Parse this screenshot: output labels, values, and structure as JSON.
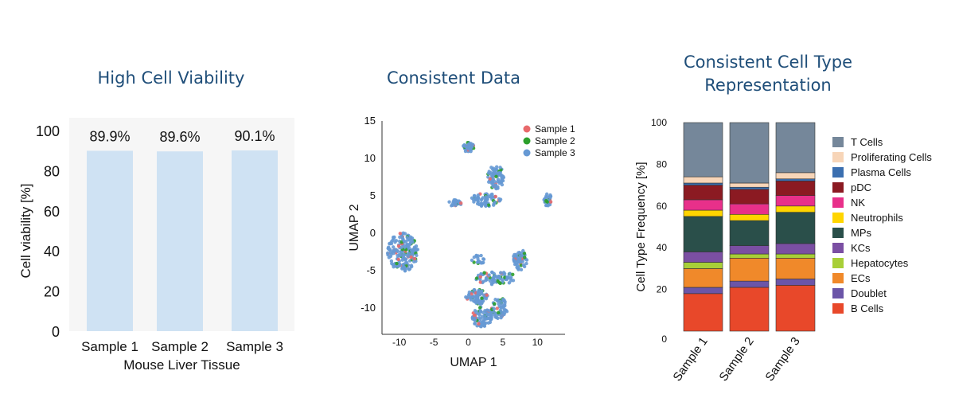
{
  "chart_data": [
    {
      "type": "bar",
      "title": "High Cell Viability",
      "xlabel": "Mouse Liver Tissue",
      "ylabel": "Cell viability [%]",
      "categories": [
        "Sample 1",
        "Sample 2",
        "Sample 3"
      ],
      "values": [
        89.9,
        89.6,
        90.1
      ],
      "value_labels": [
        "89.9%",
        "89.6%",
        "90.1%"
      ],
      "ylim": [
        0,
        100
      ],
      "yticks": [
        0,
        20,
        40,
        60,
        80,
        100
      ],
      "grid": false,
      "colors": {
        "bar": "#cfe2f3"
      }
    },
    {
      "type": "scatter",
      "title": "Consistent Data",
      "xlabel": "UMAP 1",
      "ylabel": "UMAP 2",
      "xlim": [
        -12.5,
        14
      ],
      "ylim": [
        -13.5,
        15
      ],
      "xticks": [
        -10,
        -5,
        0,
        5,
        10
      ],
      "yticks": [
        -10,
        -5,
        0,
        5,
        10,
        15
      ],
      "legend_position": "top-right",
      "grid": false,
      "series": [
        {
          "name": "Sample 1",
          "color": "#e8696b"
        },
        {
          "name": "Sample 2",
          "color": "#2ca02c"
        },
        {
          "name": "Sample 3",
          "color": "#6699d4"
        }
      ],
      "clusters": [
        {
          "cx": 0,
          "cy": 11.5,
          "rx": 0.8,
          "ry": 0.7,
          "n": 45
        },
        {
          "cx": 4,
          "cy": 7.5,
          "rx": 1.2,
          "ry": 1.6,
          "n": 80
        },
        {
          "cx": 2.5,
          "cy": 4.5,
          "rx": 2.2,
          "ry": 0.9,
          "n": 70
        },
        {
          "cx": 11.5,
          "cy": 4.5,
          "rx": 0.6,
          "ry": 0.9,
          "n": 35
        },
        {
          "cx": -9.5,
          "cy": -2.5,
          "rx": 2.2,
          "ry": 2.6,
          "n": 190
        },
        {
          "cx": 7.5,
          "cy": -3.5,
          "rx": 1.0,
          "ry": 1.4,
          "n": 60
        },
        {
          "cx": 4,
          "cy": -6,
          "rx": 3.0,
          "ry": 0.9,
          "n": 80
        },
        {
          "cx": 1.2,
          "cy": -8.5,
          "rx": 1.6,
          "ry": 1.0,
          "n": 80
        },
        {
          "cx": 2,
          "cy": -11.2,
          "rx": 1.4,
          "ry": 1.4,
          "n": 85
        },
        {
          "cx": 4.5,
          "cy": -10,
          "rx": 1.2,
          "ry": 1.4,
          "n": 60
        },
        {
          "cx": -2,
          "cy": 4,
          "rx": 1.0,
          "ry": 0.5,
          "n": 25
        },
        {
          "cx": 1.5,
          "cy": -3.5,
          "rx": 1.0,
          "ry": 0.6,
          "n": 20
        }
      ]
    },
    {
      "type": "bar",
      "stacked": true,
      "title": "Consistent Cell Type Representation",
      "title_lines": [
        "Consistent Cell Type",
        "Representation"
      ],
      "ylabel": "Cell Type Frequency [%]",
      "categories": [
        "Sample 1",
        "Sample 2",
        "Sample 3"
      ],
      "ylim": [
        0,
        100
      ],
      "yticks": [
        0,
        20,
        40,
        60,
        80,
        100
      ],
      "legend_position": "right",
      "grid": false,
      "series": [
        {
          "name": "B Cells",
          "color": "#e8482a",
          "values": [
            18,
            21,
            22
          ]
        },
        {
          "name": "Doublet",
          "color": "#6b55a8",
          "values": [
            3,
            3,
            3
          ]
        },
        {
          "name": "ECs",
          "color": "#f0892a",
          "values": [
            9,
            11,
            10
          ]
        },
        {
          "name": "Hepatocytes",
          "color": "#a8cf38",
          "values": [
            3,
            2,
            2
          ]
        },
        {
          "name": "KCs",
          "color": "#7b4fa3",
          "values": [
            5,
            4,
            5
          ]
        },
        {
          "name": "MPs",
          "color": "#2a4f4a",
          "values": [
            17,
            12,
            15
          ]
        },
        {
          "name": "Neutrophils",
          "color": "#ffd500",
          "values": [
            3,
            3,
            3
          ]
        },
        {
          "name": "NK",
          "color": "#e8308a",
          "values": [
            5,
            5,
            5
          ]
        },
        {
          "name": "pDC",
          "color": "#8b1a22",
          "values": [
            7,
            7,
            7
          ]
        },
        {
          "name": "Plasma Cells",
          "color": "#3b6fb0",
          "values": [
            1,
            1,
            1
          ]
        },
        {
          "name": "Proliferating Cells",
          "color": "#f7d5b8",
          "values": [
            3,
            2,
            3
          ]
        },
        {
          "name": "T Cells",
          "color": "#75879a",
          "values": [
            26,
            29,
            24
          ]
        }
      ]
    }
  ]
}
